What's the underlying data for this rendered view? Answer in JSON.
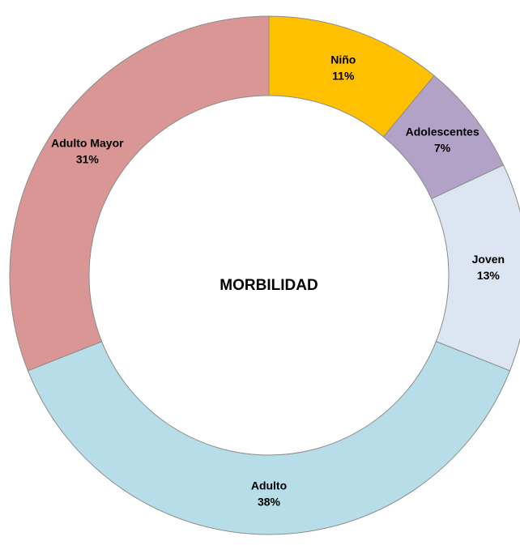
{
  "chart_data": {
    "type": "donut",
    "title": "MORBILIDAD",
    "categories": [
      "Niño",
      "Adolescentes",
      "Joven",
      "Adulto",
      "Adulto Mayor"
    ],
    "values": [
      11,
      7,
      13,
      38,
      31
    ],
    "value_labels": [
      "11%",
      "7%",
      "13%",
      "38%",
      "31%"
    ],
    "colors": [
      "#ffc000",
      "#b3a2c7",
      "#dce6f2",
      "#b7dde8",
      "#d99694"
    ]
  }
}
